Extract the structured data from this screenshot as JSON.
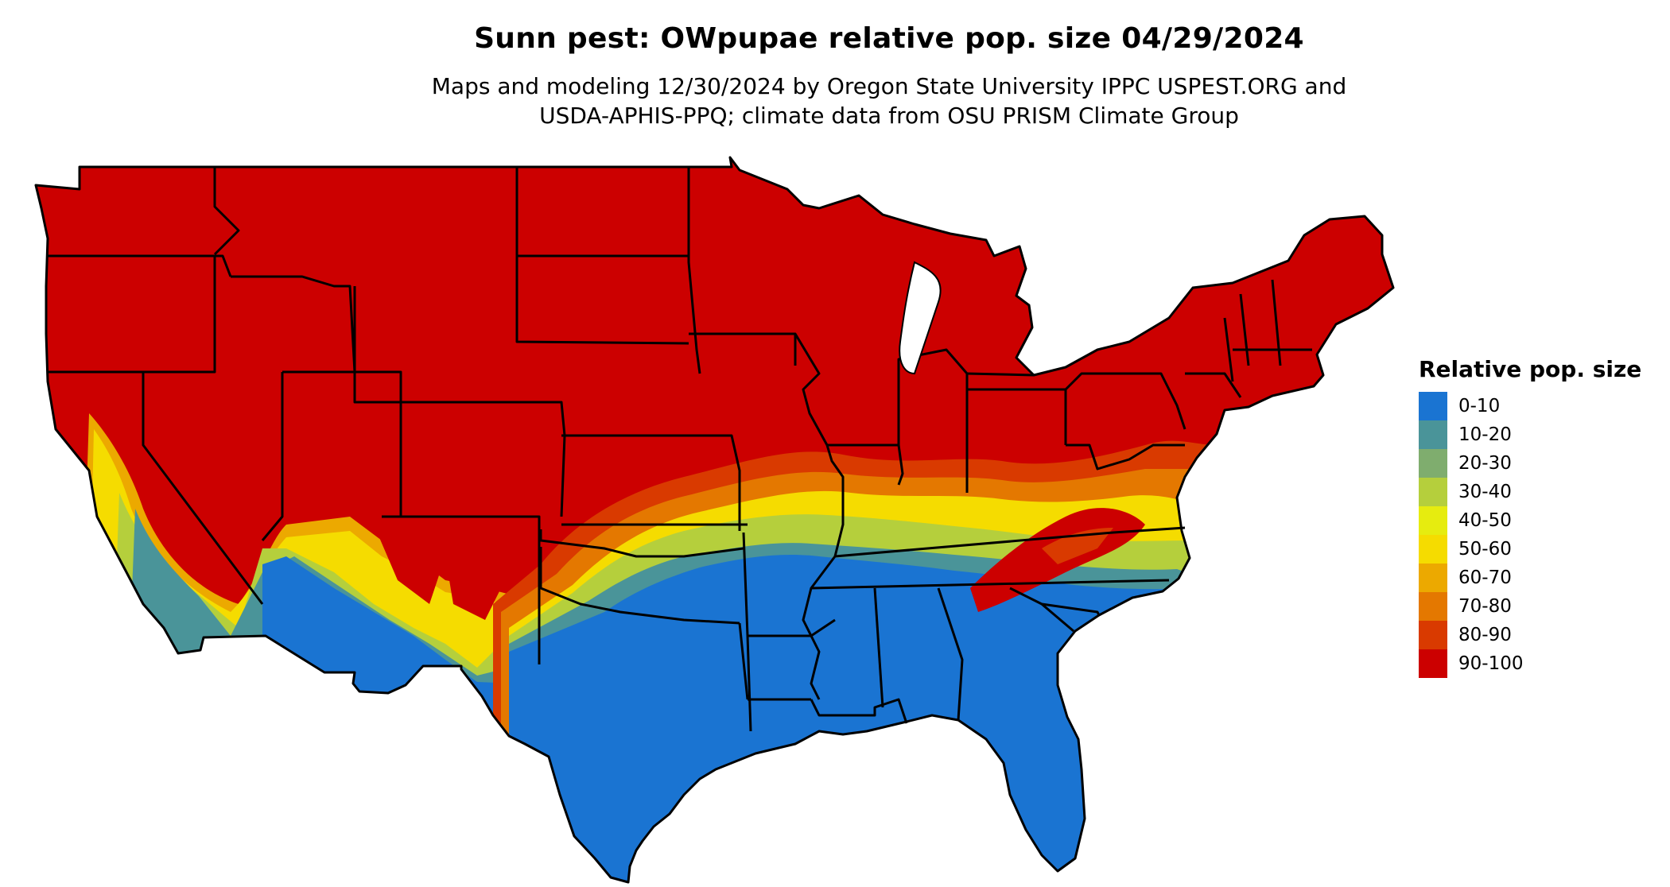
{
  "header": {
    "title": "Sunn pest: OWpupae relative pop. size 04/29/2024",
    "subtitle_line1": "Maps and modeling 12/30/2024 by Oregon State University IPPC USPEST.ORG and",
    "subtitle_line2": "USDA-APHIS-PPQ; climate data from OSU PRISM Climate Group"
  },
  "legend": {
    "title": "Relative pop. size",
    "items": [
      {
        "label": "0-10",
        "color": "#1a74d2"
      },
      {
        "label": "10-20",
        "color": "#4a9499"
      },
      {
        "label": "20-30",
        "color": "#7fad6e"
      },
      {
        "label": "30-40",
        "color": "#b5cf3c"
      },
      {
        "label": "40-50",
        "color": "#e6ec0f"
      },
      {
        "label": "50-60",
        "color": "#f5dc00"
      },
      {
        "label": "60-70",
        "color": "#eca900"
      },
      {
        "label": "70-80",
        "color": "#e47800"
      },
      {
        "label": "80-90",
        "color": "#d93a00"
      },
      {
        "label": "90-100",
        "color": "#cc0000"
      }
    ]
  },
  "map": {
    "region": "contiguous-us",
    "base_color": "#cc0000",
    "boundary_color": "#000000"
  }
}
